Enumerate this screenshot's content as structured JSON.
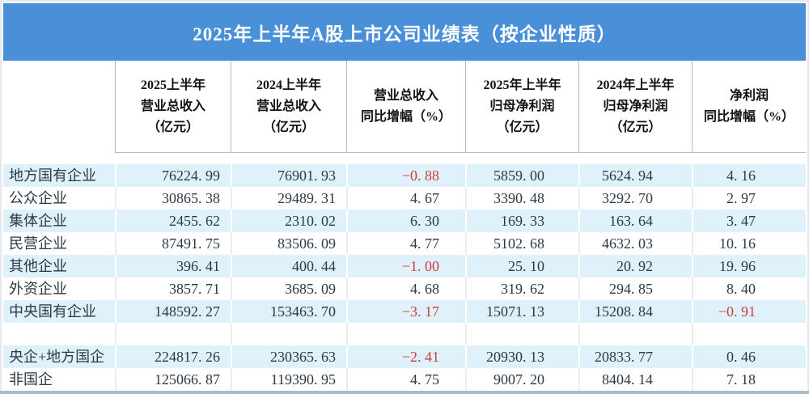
{
  "colors": {
    "title_bar": "#4a90d8",
    "alt_row": "#dff1fa",
    "negative": "#d23b3b",
    "text": "#2b3a46",
    "header_line": "#b9bcbf",
    "bottom_strip": "#aab9c6"
  },
  "chart_data": {
    "type": "table",
    "title": "2025年上半年A股上市公司业绩表（按企业性质）",
    "columns": [
      "2025上半年\n营业总收入\n（亿元）",
      "2024上半年\n营业总收入\n（亿元）",
      "营业总收入\n同比增幅（%）",
      "2025年上半年\n归母净利润\n（亿元）",
      "2024年上半年\n归母净利润\n（亿元）",
      "净利润\n同比增幅（%）"
    ],
    "rows": [
      {
        "label": "地方国有企业",
        "values": [
          "76224.99",
          "76901.93",
          "-0.88",
          "5859.00",
          "5624.94",
          "4.16"
        ]
      },
      {
        "label": "公众企业",
        "values": [
          "30865.38",
          "29489.31",
          "4.67",
          "3390.48",
          "3292.70",
          "2.97"
        ]
      },
      {
        "label": "集体企业",
        "values": [
          "2455.62",
          "2310.02",
          "6.30",
          "169.33",
          "163.64",
          "3.47"
        ]
      },
      {
        "label": "民营企业",
        "values": [
          "87491.75",
          "83506.09",
          "4.77",
          "5102.68",
          "4632.03",
          "10.16"
        ]
      },
      {
        "label": "其他企业",
        "values": [
          "396.41",
          "400.44",
          "-1.00",
          "25.10",
          "20.92",
          "19.96"
        ]
      },
      {
        "label": "外资企业",
        "values": [
          "3857.71",
          "3685.09",
          "4.68",
          "319.62",
          "294.85",
          "8.40"
        ]
      },
      {
        "label": "中央国有企业",
        "values": [
          "148592.27",
          "153463.70",
          "-3.17",
          "15071.13",
          "15208.84",
          "-0.91"
        ]
      },
      {
        "label": "",
        "values": [
          "",
          "",
          "",
          "",
          "",
          ""
        ]
      },
      {
        "label": "央企+地方国企",
        "values": [
          "224817.26",
          "230365.63",
          "-2.41",
          "20930.13",
          "20833.77",
          "0.46"
        ]
      },
      {
        "label": "非国企",
        "values": [
          "125066.87",
          "119390.95",
          "4.75",
          "9007.20",
          "8404.14",
          "7.18"
        ]
      }
    ]
  }
}
